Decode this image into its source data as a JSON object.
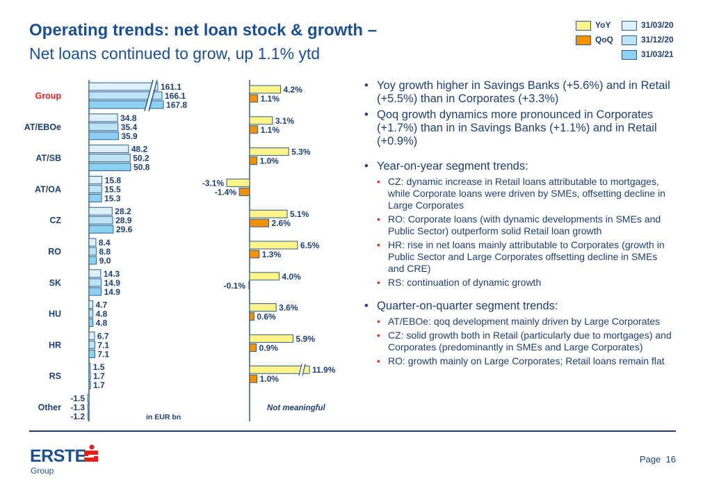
{
  "title": "Operating trends: net loan stock & growth –",
  "subtitle": "Net loans continued to grow, up 1.1% ytd",
  "legend": {
    "yoy": "YoY",
    "qoq": "QoQ",
    "d1": "31/03/20",
    "d2": "31/12/20",
    "d3": "31/03/21"
  },
  "colors": {
    "yoy": "#fff38a",
    "qoq": "#f39200",
    "d1": "#ddf0fb",
    "d2": "#bde3f7",
    "d3": "#8dd0f1",
    "outline": "#2b5c8a",
    "text": "#1d3f73",
    "highlight": "#e2231a"
  },
  "chart_data": [
    {
      "type": "bar",
      "orientation": "horizontal",
      "unit_label": "in EUR bn",
      "categories": [
        "Group",
        "AT/EBOe",
        "AT/SB",
        "AT/OA",
        "CZ",
        "RO",
        "SK",
        "HU",
        "HR",
        "RS",
        "Other"
      ],
      "highlight_category": "Group",
      "broken_bars": [
        "Group"
      ],
      "series": [
        {
          "name": "31/03/20",
          "values": [
            161.1,
            34.8,
            48.2,
            15.8,
            28.2,
            8.4,
            14.3,
            4.7,
            6.7,
            1.5,
            -1.5
          ]
        },
        {
          "name": "31/12/20",
          "values": [
            166.1,
            35.4,
            50.2,
            15.5,
            28.9,
            8.8,
            14.9,
            4.8,
            7.1,
            1.7,
            -1.3
          ]
        },
        {
          "name": "31/03/21",
          "values": [
            167.8,
            35.9,
            50.8,
            15.3,
            29.6,
            9.0,
            14.9,
            4.8,
            7.1,
            1.7,
            -1.2
          ]
        }
      ]
    },
    {
      "type": "bar",
      "orientation": "horizontal",
      "unit": "%",
      "categories": [
        "Group",
        "AT/EBOe",
        "AT/SB",
        "AT/OA",
        "CZ",
        "RO",
        "SK",
        "HU",
        "HR",
        "RS",
        "Other"
      ],
      "broken_bars": [
        "RS"
      ],
      "annotation": "Not meaningful",
      "series": [
        {
          "name": "YoY",
          "values": [
            4.2,
            3.1,
            5.3,
            -3.1,
            5.1,
            6.5,
            4.0,
            3.6,
            5.9,
            11.9,
            null
          ]
        },
        {
          "name": "QoQ",
          "values": [
            1.1,
            1.1,
            1.0,
            -1.4,
            2.6,
            1.3,
            -0.1,
            0.6,
            0.9,
            1.0,
            null
          ]
        }
      ]
    }
  ],
  "bullets": [
    {
      "text": "Yoy growth higher in Savings Banks (+5.6%) and in Retail (+5.5%) than in Corporates (+3.3%)",
      "sub": []
    },
    {
      "text": "Qoq growth dynamics more pronounced in Corporates (+1.7%) than in in Savings Banks (+1.1%) and in Retail (+0.9%)",
      "sub": []
    },
    {
      "text": "Year-on-year segment trends:",
      "sub": [
        "CZ: dynamic increase in Retail loans attributable to mortgages, while Corporate loans were driven by SMEs, offsetting decline in Large Corporates",
        "RO: Corporate loans (with dynamic developments in SMEs and Public Sector) outperform solid Retail loan growth",
        "HR: rise in net loans mainly attributable to Corporates (growth in Public Sector and Large Corporates offsetting decline in SMEs and CRE)",
        "RS: continuation of dynamic growth"
      ]
    },
    {
      "text": "Quarter-on-quarter segment trends:",
      "sub": [
        "AT/EBOe: qoq development mainly driven by Large Corporates",
        "CZ: solid growth both in Retail (particularly due to mortgages) and Corporates (predominantly in SMEs and Large Corporates)",
        "RO: growth mainly on Large Corporates; Retail loans remain flat"
      ]
    }
  ],
  "footer": {
    "logo_text": "ERSTE",
    "logo_sub": "Group",
    "page_label": "Page",
    "page_number": "16"
  }
}
